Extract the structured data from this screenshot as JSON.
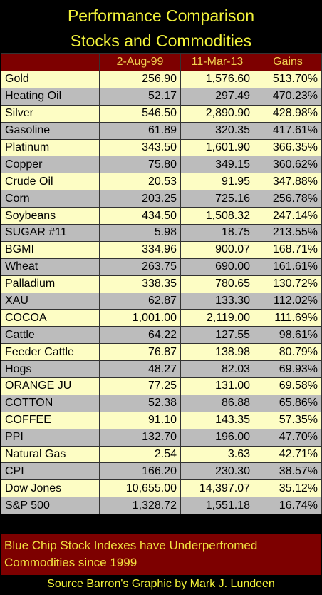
{
  "chart_data": {
    "type": "table",
    "title": "Performance Comparison",
    "subtitle": "Stocks and Commodities",
    "columns": [
      "",
      "2-Aug-99",
      "11-Mar-13",
      "Gains"
    ],
    "rows": [
      [
        "Gold",
        "256.90",
        "1,576.60",
        "513.70%"
      ],
      [
        "Heating Oil",
        "52.17",
        "297.49",
        "470.23%"
      ],
      [
        "Silver",
        "546.50",
        "2,890.90",
        "428.98%"
      ],
      [
        "Gasoline",
        "61.89",
        "320.35",
        "417.61%"
      ],
      [
        "Platinum",
        "343.50",
        "1,601.90",
        "366.35%"
      ],
      [
        "Copper",
        "75.80",
        "349.15",
        "360.62%"
      ],
      [
        "Crude Oil",
        "20.53",
        "91.95",
        "347.88%"
      ],
      [
        "Corn",
        "203.25",
        "725.16",
        "256.78%"
      ],
      [
        "Soybeans",
        "434.50",
        "1,508.32",
        "247.14%"
      ],
      [
        "SUGAR #11",
        "5.98",
        "18.75",
        "213.55%"
      ],
      [
        "BGMI",
        "334.96",
        "900.07",
        "168.71%"
      ],
      [
        "Wheat",
        "263.75",
        "690.00",
        "161.61%"
      ],
      [
        "Palladium",
        "338.35",
        "780.65",
        "130.72%"
      ],
      [
        "XAU",
        "62.87",
        "133.30",
        "112.02%"
      ],
      [
        "COCOA",
        "1,001.00",
        "2,119.00",
        "111.69%"
      ],
      [
        "Cattle",
        "64.22",
        "127.55",
        "98.61%"
      ],
      [
        "Feeder Cattle",
        "76.87",
        "138.98",
        "80.79%"
      ],
      [
        "Hogs",
        "48.27",
        "82.03",
        "69.93%"
      ],
      [
        "ORANGE JU",
        "77.25",
        "131.00",
        "69.58%"
      ],
      [
        "COTTON",
        "52.38",
        "86.88",
        "65.86%"
      ],
      [
        "COFFEE",
        "91.10",
        "143.35",
        "57.35%"
      ],
      [
        "PPI",
        "132.70",
        "196.00",
        "47.70%"
      ],
      [
        "Natural Gas",
        "2.54",
        "3.63",
        "42.71%"
      ],
      [
        "CPI",
        "166.20",
        "230.30",
        "38.57%"
      ],
      [
        "Dow Jones",
        "10,655.00",
        "14,397.07",
        "35.12%"
      ],
      [
        "S&P 500",
        "1,328.72",
        "1,551.18",
        "16.74%"
      ]
    ],
    "note": "Blue Chip Stock Indexes have Underperfromed Commodities since 1999",
    "source": "Source Barron's  Graphic by Mark J. Lundeen"
  },
  "colors": {
    "title_yellow": "#f2f23a",
    "header_maroon": "#7d0000",
    "row_cream": "#fdfdc4",
    "row_gray": "#bcbcbc",
    "background": "#000000"
  }
}
